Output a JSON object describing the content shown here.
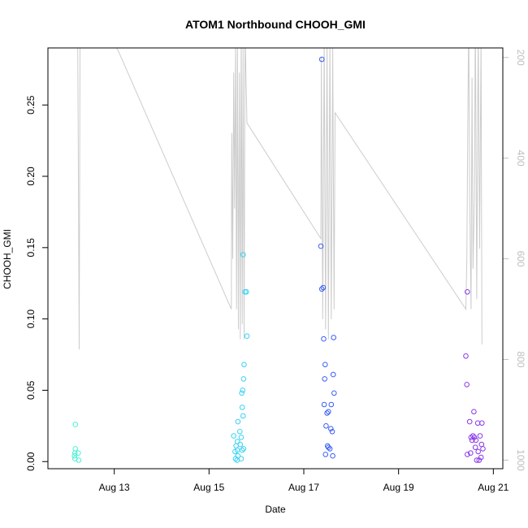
{
  "chart_data": {
    "type": "scatter",
    "title": "ATOM1 Northbound CHOOH_GMI",
    "xlabel": "Date",
    "ylabel": "CHOOH_GMI",
    "x_ticks": [
      "Aug 13",
      "Aug 15",
      "Aug 17",
      "Aug 19",
      "Aug 21"
    ],
    "x_tick_days": [
      13,
      15,
      17,
      19,
      21
    ],
    "xlim_days": [
      11.6,
      21.2
    ],
    "ylim": [
      -0.005,
      0.29
    ],
    "y_ticks": [
      0.0,
      0.05,
      0.1,
      0.15,
      0.2,
      0.25
    ],
    "y_tick_labels": [
      "0.00",
      "0.05",
      "0.10",
      "0.15",
      "0.20",
      "0.25"
    ],
    "right_axis": {
      "ticks": [
        200,
        400,
        600,
        800,
        1000
      ],
      "ylim": [
        1017,
        181
      ],
      "color": "#bebebe"
    },
    "altitude_color": "#cccccc",
    "frame_color": "#000000",
    "series": [
      {
        "color": "#4af0d6",
        "points": [
          [
            12.18,
            0.026
          ],
          [
            12.18,
            0.009
          ],
          [
            12.17,
            0.006
          ],
          [
            12.24,
            0.006
          ],
          [
            12.16,
            0.004
          ],
          [
            12.17,
            0.002
          ],
          [
            12.25,
            0.001
          ]
        ]
      },
      {
        "color": "#38d2f4",
        "points": [
          [
            15.72,
            0.145
          ],
          [
            15.76,
            0.119
          ],
          [
            15.79,
            0.119
          ],
          [
            15.8,
            0.088
          ],
          [
            15.74,
            0.068
          ],
          [
            15.73,
            0.058
          ],
          [
            15.71,
            0.05
          ],
          [
            15.69,
            0.048
          ],
          [
            15.7,
            0.038
          ],
          [
            15.72,
            0.032
          ],
          [
            15.61,
            0.028
          ],
          [
            15.65,
            0.021
          ],
          [
            15.68,
            0.017
          ],
          [
            15.52,
            0.018
          ],
          [
            15.6,
            0.014
          ],
          [
            15.66,
            0.012
          ],
          [
            15.57,
            0.011
          ],
          [
            15.6,
            0.008
          ],
          [
            15.73,
            0.009
          ],
          [
            15.7,
            0.008
          ],
          [
            15.55,
            0.007
          ],
          [
            15.61,
            0.004
          ],
          [
            15.56,
            0.002
          ],
          [
            15.59,
            0.001
          ],
          [
            15.68,
            0.002
          ]
        ]
      },
      {
        "color": "#3a5ef4",
        "points": [
          [
            17.38,
            0.282
          ],
          [
            17.36,
            0.151
          ],
          [
            17.38,
            0.121
          ],
          [
            17.41,
            0.122
          ],
          [
            17.42,
            0.086
          ],
          [
            17.63,
            0.087
          ],
          [
            17.45,
            0.068
          ],
          [
            17.62,
            0.061
          ],
          [
            17.44,
            0.058
          ],
          [
            17.64,
            0.048
          ],
          [
            17.43,
            0.04
          ],
          [
            17.58,
            0.04
          ],
          [
            17.52,
            0.035
          ],
          [
            17.49,
            0.034
          ],
          [
            17.47,
            0.025
          ],
          [
            17.57,
            0.023
          ],
          [
            17.6,
            0.021
          ],
          [
            17.5,
            0.011
          ],
          [
            17.52,
            0.01
          ],
          [
            17.55,
            0.009
          ],
          [
            17.46,
            0.005
          ],
          [
            17.61,
            0.004
          ]
        ]
      },
      {
        "color": "#8a38e6",
        "points": [
          [
            20.45,
            0.119
          ],
          [
            20.42,
            0.074
          ],
          [
            20.44,
            0.054
          ],
          [
            20.59,
            0.035
          ],
          [
            20.5,
            0.028
          ],
          [
            20.67,
            0.027
          ],
          [
            20.76,
            0.027
          ],
          [
            20.57,
            0.018
          ],
          [
            20.53,
            0.017
          ],
          [
            20.6,
            0.017
          ],
          [
            20.72,
            0.018
          ],
          [
            20.55,
            0.015
          ],
          [
            20.63,
            0.015
          ],
          [
            20.75,
            0.012
          ],
          [
            20.62,
            0.01
          ],
          [
            20.78,
            0.009
          ],
          [
            20.68,
            0.007
          ],
          [
            20.52,
            0.006
          ],
          [
            20.45,
            0.005
          ],
          [
            20.74,
            0.003
          ],
          [
            20.65,
            0.001
          ],
          [
            20.7,
            0.001
          ]
        ]
      }
    ],
    "altitude_profile": [
      [
        12.22,
        40
      ],
      [
        12.24,
        360
      ],
      [
        12.26,
        780
      ],
      [
        12.28,
        40
      ],
      [
        12.3,
        40
      ],
      [
        13.1,
        190
      ],
      [
        15.47,
        700
      ],
      [
        15.48,
        350
      ],
      [
        15.5,
        600
      ],
      [
        15.52,
        230
      ],
      [
        15.54,
        500
      ],
      [
        15.56,
        170
      ],
      [
        15.58,
        700
      ],
      [
        15.6,
        160
      ],
      [
        15.62,
        740
      ],
      [
        15.64,
        230
      ],
      [
        15.66,
        760
      ],
      [
        15.68,
        140
      ],
      [
        15.7,
        730
      ],
      [
        15.72,
        180
      ],
      [
        15.74,
        760
      ],
      [
        15.76,
        150
      ],
      [
        15.8,
        330
      ],
      [
        17.36,
        560
      ],
      [
        17.37,
        200
      ],
      [
        17.4,
        720
      ],
      [
        17.43,
        160
      ],
      [
        17.46,
        740
      ],
      [
        17.49,
        170
      ],
      [
        17.52,
        760
      ],
      [
        17.55,
        160
      ],
      [
        17.58,
        720
      ],
      [
        17.61,
        180
      ],
      [
        17.64,
        700
      ],
      [
        17.66,
        310
      ],
      [
        20.42,
        700
      ],
      [
        20.44,
        600
      ],
      [
        20.46,
        350
      ],
      [
        20.48,
        120
      ],
      [
        20.5,
        480
      ],
      [
        20.53,
        700
      ],
      [
        20.55,
        240
      ],
      [
        20.57,
        620
      ],
      [
        20.6,
        480
      ],
      [
        20.62,
        120
      ],
      [
        20.65,
        680
      ],
      [
        20.68,
        140
      ],
      [
        20.71,
        580
      ],
      [
        20.74,
        160
      ],
      [
        20.76,
        770
      ]
    ]
  }
}
